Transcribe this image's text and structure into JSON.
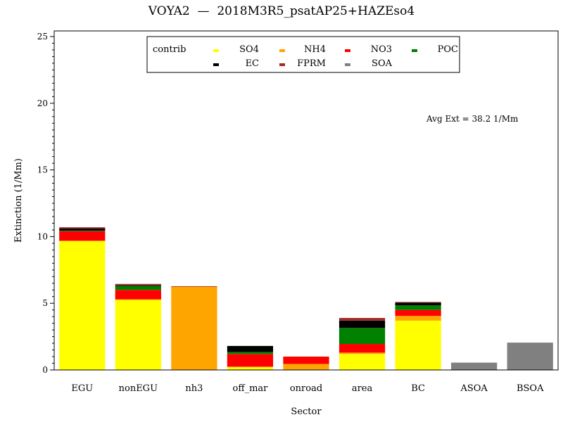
{
  "chart_data": {
    "type": "bar",
    "stacked": true,
    "title": "VOYA2  —  2018M3R5_psatAP25+HAZEso4",
    "xlabel": "Sector",
    "ylabel": "Extinction (1/Mm)",
    "ylim": [
      0,
      25
    ],
    "yticks": [
      "0",
      "5",
      "10",
      "15",
      "20",
      "25"
    ],
    "categories": [
      "EGU",
      "nonEGU",
      "nh3",
      "off_mar",
      "onroad",
      "area",
      "BC",
      "ASOA",
      "BSOA"
    ],
    "legend": {
      "title": "contrib",
      "placement": "top-center"
    },
    "series": [
      {
        "name": "SO4",
        "color": "#ffff00",
        "values": [
          9.65,
          5.25,
          0.0,
          0.2,
          0.0,
          1.2,
          3.7,
          0.0,
          0.0
        ]
      },
      {
        "name": "NH4",
        "color": "#ffa500",
        "values": [
          0.05,
          0.05,
          6.25,
          0.05,
          0.45,
          0.1,
          0.35,
          0.0,
          0.0
        ]
      },
      {
        "name": "NO3",
        "color": "#ff0000",
        "values": [
          0.7,
          0.7,
          0.0,
          0.95,
          0.55,
          0.65,
          0.45,
          0.0,
          0.0
        ]
      },
      {
        "name": "POC",
        "color": "#008000",
        "values": [
          0.05,
          0.3,
          0.0,
          0.15,
          0.0,
          1.2,
          0.35,
          0.0,
          0.0
        ]
      },
      {
        "name": "EC",
        "color": "#000000",
        "values": [
          0.15,
          0.05,
          0.0,
          0.45,
          0.0,
          0.55,
          0.2,
          0.0,
          0.0
        ]
      },
      {
        "name": "FPRM",
        "color": "#a52a2a",
        "values": [
          0.1,
          0.1,
          0.03,
          0.0,
          0.0,
          0.2,
          0.05,
          0.0,
          0.0
        ]
      },
      {
        "name": "SOA",
        "color": "#808080",
        "values": [
          0.0,
          0.0,
          0.0,
          0.0,
          0.0,
          0.0,
          0.0,
          0.55,
          2.05
        ]
      }
    ],
    "annotation": "Avg Ext =  38.2 1/Mm",
    "grid": false
  }
}
